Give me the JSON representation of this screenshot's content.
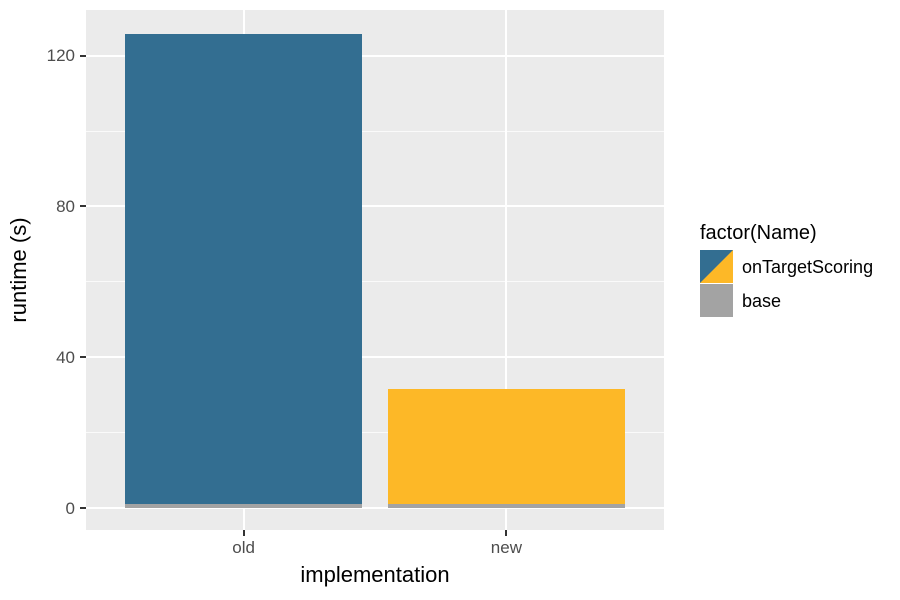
{
  "figure": {
    "background": "#FFFFFF",
    "panel_background": "#EBEBEB",
    "gridline_color": "#FFFFFF",
    "tick_mark_color": "#333333",
    "tick_label_color": "#4D4D4D"
  },
  "axes": {
    "x": {
      "title": "implementation",
      "tick_labels": [
        "old",
        "new"
      ]
    },
    "y": {
      "title": "runtime (s)",
      "tick_labels": [
        "0",
        "40",
        "80",
        "120"
      ]
    }
  },
  "legend": {
    "title": "factor(Name)",
    "items": [
      {
        "label": "onTargetScoring",
        "colors": [
          "#336E91",
          "#FDB827"
        ]
      },
      {
        "label": "base",
        "colors": [
          "#A3A3A3"
        ]
      }
    ]
  },
  "chart_data": {
    "type": "bar",
    "stacked": true,
    "title": "",
    "xlabel": "implementation",
    "ylabel": "runtime (s)",
    "categories": [
      "old",
      "new"
    ],
    "series": [
      {
        "name": "base",
        "values": [
          1.2,
          1.2
        ],
        "colors": [
          "#A3A3A3",
          "#A3A3A3"
        ]
      },
      {
        "name": "onTargetScoring",
        "values": [
          124.6,
          30.5
        ],
        "colors": [
          "#336E91",
          "#FDB827"
        ]
      }
    ],
    "totals": [
      125.8,
      31.7
    ],
    "y_major_ticks": [
      0,
      40,
      80,
      120
    ],
    "y_minor_ticks": [
      20,
      60,
      100
    ],
    "ylim": [
      0,
      132
    ],
    "grid": true,
    "legend_position": "right",
    "legend_title": "factor(Name)"
  }
}
